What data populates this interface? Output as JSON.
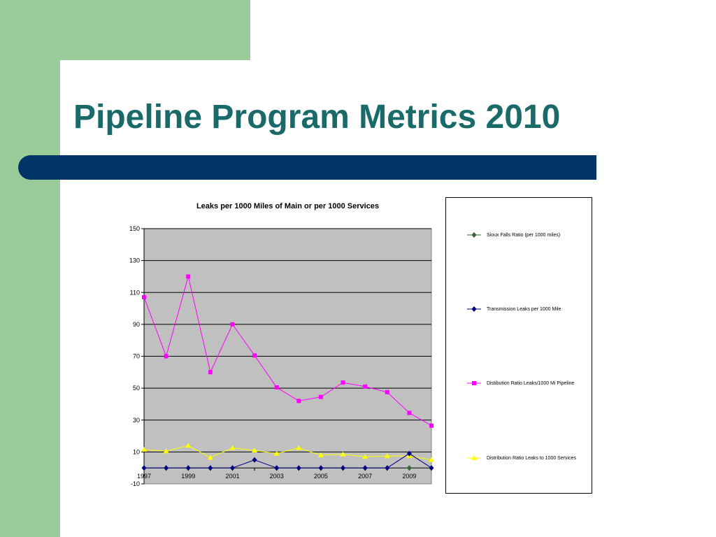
{
  "slide": {
    "title": "Pipeline Program Metrics 2010",
    "colors": {
      "accent_green": "#99cc99",
      "title_teal": "#1a6a6a",
      "bar_navy": "#003366"
    }
  },
  "chart_data": {
    "type": "line",
    "title": "Leaks per 1000 Miles of Main or per 1000 Services",
    "xlabel": "",
    "ylabel": "",
    "x": [
      1997,
      1998,
      1999,
      2000,
      2001,
      2002,
      2003,
      2004,
      2005,
      2006,
      2007,
      2008,
      2009,
      2010
    ],
    "x_tick_labels": [
      "1997",
      "1999",
      "2001",
      "2003",
      "2005",
      "2007",
      "2009"
    ],
    "x_tick_values": [
      1997,
      1999,
      2001,
      2003,
      2005,
      2007,
      2009
    ],
    "ylim": [
      -10,
      150
    ],
    "y_ticks": [
      -10,
      10,
      30,
      50,
      70,
      90,
      110,
      130,
      150
    ],
    "grid": true,
    "plot_background": "#c0c0c0",
    "legend_position": "right",
    "series": [
      {
        "name": "Sioux Falls Ratio (per 1000 miles)",
        "color": "#336633",
        "marker": "diamond",
        "x": [
          2009
        ],
        "values": [
          0
        ]
      },
      {
        "name": "Transmission Leaks per 1000 Mile",
        "color": "#000080",
        "marker": "diamond",
        "x": [
          1997,
          1998,
          1999,
          2000,
          2001,
          2002,
          2003,
          2004,
          2005,
          2006,
          2007,
          2008,
          2009,
          2010
        ],
        "values": [
          0,
          0,
          0,
          0,
          0,
          5,
          0,
          0,
          0,
          0,
          0,
          0,
          9,
          0
        ]
      },
      {
        "name": "Distibution Ratio Leaks/1000 Mi Pipeline",
        "color": "#ff00ff",
        "marker": "square",
        "x": [
          1997,
          1998,
          1999,
          2000,
          2001,
          2002,
          2003,
          2004,
          2005,
          2006,
          2007,
          2008,
          2009,
          2010
        ],
        "values": [
          107,
          70,
          120,
          60,
          90,
          70.5,
          50.5,
          42,
          44.5,
          53.5,
          51,
          47.5,
          34.5,
          26.5
        ]
      },
      {
        "name": "Distribution Ratio Leaks to 1000 Services",
        "color": "#ffff00",
        "marker": "triangle",
        "x": [
          1997,
          1998,
          1999,
          2000,
          2001,
          2002,
          2003,
          2004,
          2005,
          2006,
          2007,
          2008,
          2009,
          2010
        ],
        "values": [
          11.5,
          10.5,
          14,
          6.5,
          12.5,
          11,
          9,
          12.5,
          8,
          8.5,
          7,
          7.5,
          7.5,
          5
        ]
      }
    ]
  }
}
